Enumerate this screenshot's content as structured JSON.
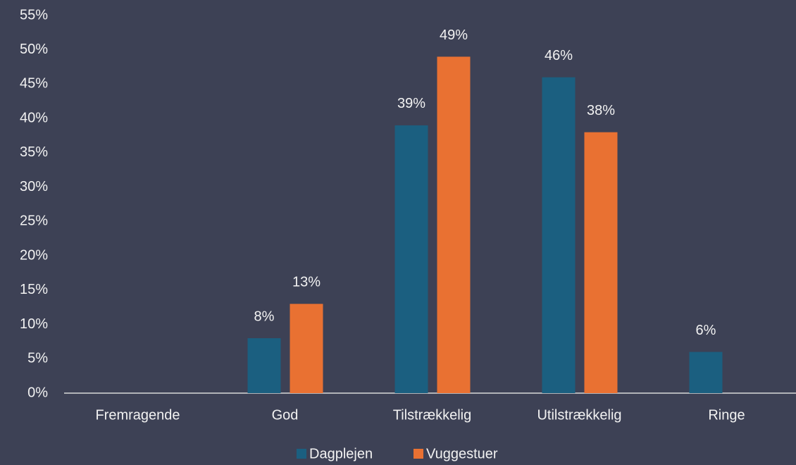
{
  "chart_data": {
    "type": "bar",
    "categories": [
      "Fremragende",
      "God",
      "Tilstrækkelig",
      "Utilstrækkelig",
      "Ringe"
    ],
    "series": [
      {
        "name": "Dagplejen",
        "color": "#1b5f80",
        "values": [
          null,
          8,
          39,
          46,
          6
        ],
        "value_labels": [
          null,
          "8%",
          "39%",
          "46%",
          "6%"
        ]
      },
      {
        "name": "Vuggestuer",
        "color": "#e97132",
        "values": [
          null,
          13,
          49,
          38,
          null
        ],
        "value_labels": [
          null,
          "13%",
          "49%",
          "38%",
          null
        ]
      }
    ],
    "ylim": [
      0,
      55
    ],
    "yticks": [
      {
        "value": 0,
        "label": "0%"
      },
      {
        "value": 5,
        "label": "5%"
      },
      {
        "value": 10,
        "label": "10%"
      },
      {
        "value": 15,
        "label": "15%"
      },
      {
        "value": 20,
        "label": "20%"
      },
      {
        "value": 25,
        "label": "25%"
      },
      {
        "value": 30,
        "label": "30%"
      },
      {
        "value": 35,
        "label": "35%"
      },
      {
        "value": 40,
        "label": "40%"
      },
      {
        "value": 45,
        "label": "45%"
      },
      {
        "value": 50,
        "label": "50%"
      },
      {
        "value": 55,
        "label": "55%"
      }
    ],
    "grid": false,
    "legend": "bottom"
  }
}
